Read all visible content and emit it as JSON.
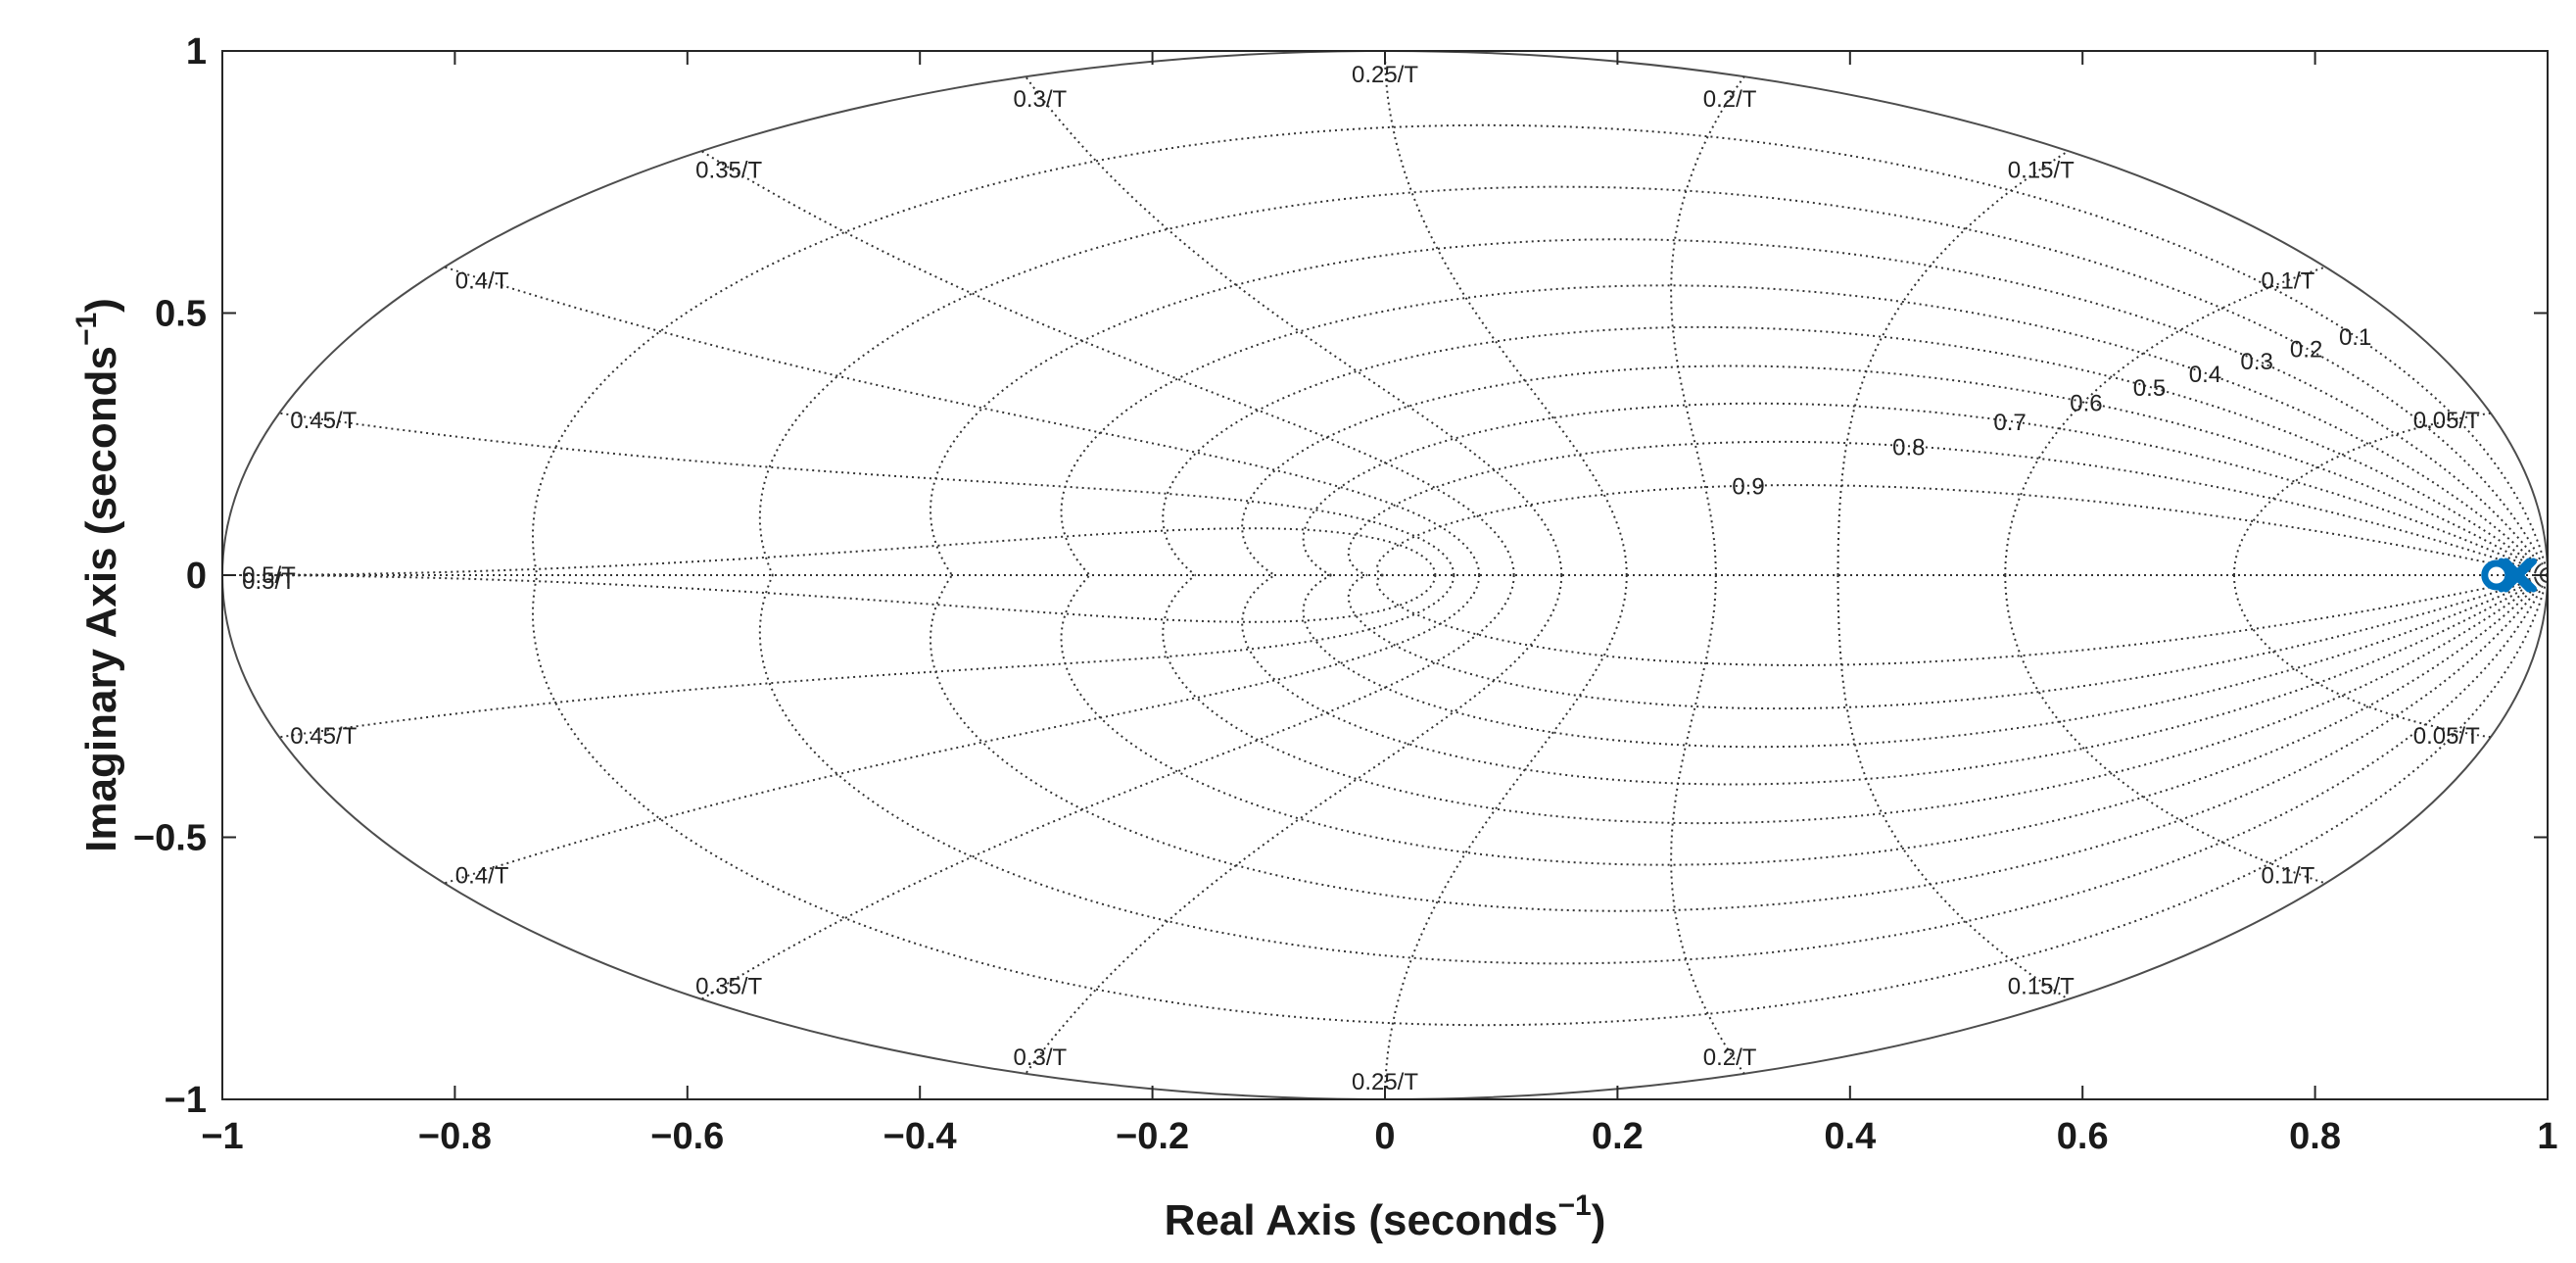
{
  "chart_data": {
    "type": "scatter",
    "title": "",
    "xlabel": "Real Axis (seconds",
    "xlabel_exponent": "−1",
    "xlabel_close": ")",
    "ylabel": "Imaginary Axis (seconds",
    "ylabel_exponent": "−1",
    "ylabel_close": ")",
    "xlim": [
      -1,
      1
    ],
    "ylim": [
      -1,
      1
    ],
    "x_ticks": [
      -1,
      -0.8,
      -0.6,
      -0.4,
      -0.2,
      0,
      0.2,
      0.4,
      0.6,
      0.8,
      1
    ],
    "x_tick_labels": [
      "−1",
      "−0.8",
      "−0.6",
      "−0.4",
      "−0.2",
      "0",
      "0.2",
      "0.4",
      "0.6",
      "0.8",
      "1"
    ],
    "y_ticks": [
      -1,
      -0.5,
      0,
      0.5,
      1
    ],
    "y_tick_labels": [
      "−1",
      "−0.5",
      "0",
      "0.5",
      "1"
    ],
    "grid": "zgrid",
    "unit_circle": true,
    "damping_ratios": [
      0.1,
      0.2,
      0.3,
      0.4,
      0.5,
      0.6,
      0.7,
      0.8,
      0.9
    ],
    "damping_labels": [
      "0.1",
      "0.2",
      "0.3",
      "0.4",
      "0.5",
      "0.6",
      "0.7",
      "0.8",
      "0.9"
    ],
    "natural_frequencies": [
      0.05,
      0.1,
      0.15,
      0.2,
      0.25,
      0.3,
      0.35,
      0.4,
      0.45,
      0.5
    ],
    "frequency_labels": [
      "0.05/T",
      "0.1/T",
      "0.15/T",
      "0.2/T",
      "0.25/T",
      "0.3/T",
      "0.35/T",
      "0.4/T",
      "0.45/T",
      "0.5/T"
    ],
    "series": [
      {
        "marker": "o",
        "color": "#0072BD",
        "points": [
          [
            0.956,
            0
          ]
        ]
      },
      {
        "marker": "x",
        "color": "#0072BD",
        "points": [
          [
            0.972,
            0
          ],
          [
            0.976,
            0
          ]
        ]
      }
    ]
  }
}
